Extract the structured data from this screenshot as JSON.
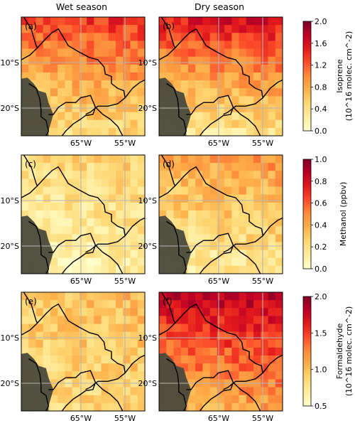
{
  "columns": [
    "Wet season",
    "Dry season"
  ],
  "map_ticks": {
    "lat_labels": [
      "10°S",
      "20°S"
    ],
    "lon_labels": [
      "65°W",
      "55°W"
    ]
  },
  "chart_data": [
    {
      "type": "heatmap",
      "row": "isoprene",
      "colormap": "YlOrRd",
      "colorbar_label_line1": "Isoprene",
      "colorbar_label_line2": "(10^16 molec. cm^-2)",
      "colorbar_range": [
        0.0,
        2.0
      ],
      "colorbar_ticks": [
        "0.0",
        "0.4",
        "0.8",
        "1.2",
        "1.6",
        "2.0"
      ],
      "panels": [
        {
          "panel_label": "(a)",
          "season": "Wet season",
          "north_level": 1.35,
          "south_level": 0.45
        },
        {
          "panel_label": "(b)",
          "season": "Dry season",
          "north_level": 1.55,
          "south_level": 0.35
        }
      ]
    },
    {
      "type": "heatmap",
      "row": "methanol",
      "colormap": "YlOrRd",
      "colorbar_label_line1": "Methanol (ppbv)",
      "colorbar_label_line2": "",
      "colorbar_range": [
        0.0,
        1.0
      ],
      "colorbar_ticks": [
        "0.0",
        "0.2",
        "0.4",
        "0.6",
        "0.8",
        "1.0"
      ],
      "panels": [
        {
          "panel_label": "(c)",
          "season": "Wet season",
          "north_level": 0.25,
          "south_level": 0.1
        },
        {
          "panel_label": "(d)",
          "season": "Dry season",
          "north_level": 0.45,
          "south_level": 0.15
        }
      ]
    },
    {
      "type": "heatmap",
      "row": "formaldehyde",
      "colormap": "YlOrRd",
      "colorbar_label_line1": "Formaldehyde",
      "colorbar_label_line2": "(10^16 molec. cm^-2)",
      "colorbar_range": [
        0.5,
        2.0
      ],
      "colorbar_ticks": [
        "0.5",
        "1.0",
        "1.5",
        "2.0"
      ],
      "panels": [
        {
          "panel_label": "(e)",
          "season": "Wet season",
          "north_level": 1.0,
          "south_level": 0.85
        },
        {
          "panel_label": "(f)",
          "season": "Dry season",
          "north_level": 1.8,
          "south_level": 1.1
        }
      ]
    }
  ],
  "colors": {
    "ocean_mask": "#4a4a3c",
    "border": "#000000",
    "grid": "#b4b4b4"
  }
}
